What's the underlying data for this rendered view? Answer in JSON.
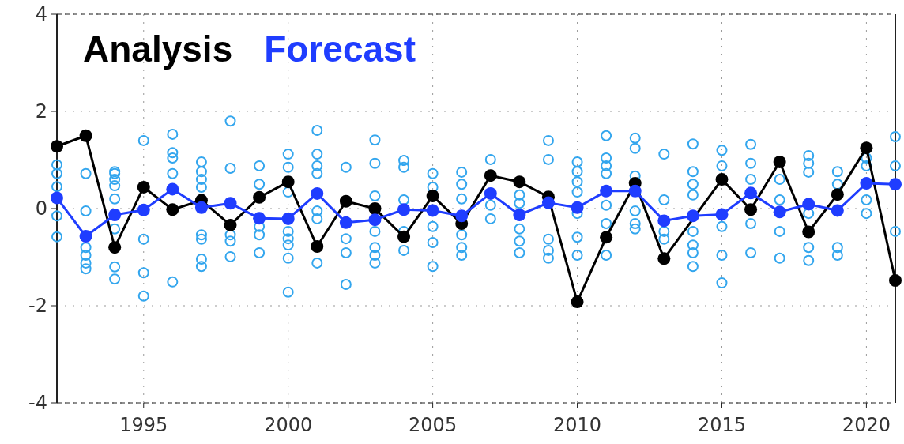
{
  "chart_data": {
    "type": "line",
    "x": [
      1992,
      1993,
      1994,
      1995,
      1996,
      1997,
      1998,
      1999,
      2000,
      2001,
      2002,
      2003,
      2004,
      2005,
      2006,
      2007,
      2008,
      2009,
      2010,
      2011,
      2012,
      2013,
      2014,
      2015,
      2016,
      2017,
      2018,
      2019,
      2020,
      2021
    ],
    "series": [
      {
        "type": "scatter",
        "color": "#33a6ee",
        "x": [
          1992,
          1992,
          1992,
          1992,
          1992,
          1993,
          1993,
          1993,
          1993,
          1993,
          1993,
          1994,
          1994,
          1994,
          1994,
          1994,
          1994,
          1994,
          1994,
          1995,
          1995,
          1995,
          1995,
          1996,
          1996,
          1996,
          1996,
          1996,
          1997,
          1997,
          1997,
          1997,
          1997,
          1997,
          1997,
          1997,
          1998,
          1998,
          1998,
          1998,
          1998,
          1999,
          1999,
          1999,
          1999,
          1999,
          2000,
          2000,
          2000,
          2000,
          2000,
          2000,
          2000,
          2000,
          2001,
          2001,
          2001,
          2001,
          2001,
          2001,
          2001,
          2002,
          2002,
          2002,
          2002,
          2003,
          2003,
          2003,
          2003,
          2003,
          2003,
          2003,
          2004,
          2004,
          2004,
          2004,
          2004,
          2005,
          2005,
          2005,
          2005,
          2005,
          2006,
          2006,
          2006,
          2006,
          2006,
          2006,
          2007,
          2007,
          2007,
          2008,
          2008,
          2008,
          2008,
          2008,
          2009,
          2009,
          2009,
          2009,
          2009,
          2010,
          2010,
          2010,
          2010,
          2010,
          2010,
          2010,
          2011,
          2011,
          2011,
          2011,
          2011,
          2011,
          2011,
          2012,
          2012,
          2012,
          2012,
          2012,
          2012,
          2013,
          2013,
          2013,
          2013,
          2014,
          2014,
          2014,
          2014,
          2014,
          2014,
          2014,
          2014,
          2015,
          2015,
          2015,
          2015,
          2015,
          2016,
          2016,
          2016,
          2016,
          2016,
          2017,
          2017,
          2017,
          2017,
          2018,
          2018,
          2018,
          2018,
          2018,
          2018,
          2019,
          2019,
          2019,
          2019,
          2020,
          2020,
          2020,
          2020,
          2021,
          2021,
          2021
        ],
        "values": [
          0.9,
          0.72,
          0.45,
          -0.15,
          -0.58,
          0.72,
          -0.05,
          -0.8,
          -0.96,
          -1.12,
          -1.24,
          0.76,
          0.72,
          0.6,
          0.47,
          0.2,
          -0.42,
          -1.2,
          -1.45,
          1.4,
          -0.63,
          -1.32,
          -1.8,
          1.53,
          1.15,
          1.04,
          0.72,
          -1.51,
          0.96,
          0.76,
          0.6,
          0.44,
          -0.54,
          -0.63,
          -1.04,
          -1.19,
          1.8,
          0.83,
          -0.54,
          -0.67,
          -0.99,
          0.88,
          0.5,
          -0.37,
          -0.54,
          -0.91,
          1.12,
          0.85,
          0.34,
          -0.47,
          -0.62,
          -0.75,
          -1.02,
          -1.72,
          1.61,
          1.12,
          0.88,
          0.72,
          -0.05,
          -0.21,
          -1.12,
          0.85,
          -0.62,
          -0.91,
          -1.56,
          1.41,
          0.93,
          0.26,
          -0.47,
          -0.8,
          -0.96,
          -1.12,
          0.99,
          0.85,
          0.18,
          -0.47,
          -0.86,
          0.72,
          0.44,
          -0.37,
          -0.7,
          -1.19,
          0.75,
          0.5,
          0.2,
          -0.54,
          -0.8,
          -0.96,
          1.01,
          0.07,
          -0.21,
          0.28,
          0.11,
          -0.42,
          -0.67,
          -0.91,
          1.4,
          1.01,
          -0.63,
          -0.86,
          -1.02,
          0.96,
          0.76,
          0.55,
          0.34,
          -0.1,
          -0.59,
          -0.96,
          1.5,
          1.04,
          0.88,
          0.72,
          0.07,
          -0.31,
          -0.96,
          1.45,
          1.24,
          0.67,
          -0.05,
          -0.31,
          -0.42,
          1.12,
          0.18,
          -0.47,
          -0.63,
          1.33,
          0.76,
          0.5,
          0.28,
          -0.47,
          -0.75,
          -0.91,
          -1.19,
          1.2,
          0.88,
          -0.37,
          -0.96,
          -1.53,
          1.32,
          0.93,
          0.6,
          -0.31,
          -0.91,
          0.6,
          0.18,
          -0.47,
          -1.02,
          1.09,
          0.93,
          0.75,
          -0.1,
          -0.8,
          -1.07,
          0.76,
          0.5,
          -0.8,
          -0.96,
          1.04,
          0.88,
          0.18,
          -0.1,
          1.48,
          0.88,
          -0.47
        ]
      },
      {
        "name": "Analysis",
        "color": "#000000",
        "values": [
          1.28,
          1.5,
          -0.8,
          0.44,
          -0.02,
          0.17,
          -0.34,
          0.23,
          0.55,
          -0.78,
          0.15,
          0.0,
          -0.58,
          0.26,
          -0.31,
          0.68,
          0.55,
          0.24,
          -1.92,
          -0.59,
          0.52,
          -1.03,
          null,
          0.6,
          -0.02,
          0.96,
          -0.48,
          0.29,
          1.25,
          -1.48
        ]
      },
      {
        "name": "Forecast",
        "color": "#1f3dff",
        "values": [
          0.22,
          -0.57,
          -0.13,
          -0.03,
          0.4,
          0.02,
          0.11,
          -0.2,
          -0.21,
          0.31,
          -0.29,
          -0.23,
          -0.02,
          -0.04,
          -0.15,
          0.31,
          -0.13,
          0.12,
          0.02,
          0.36,
          0.36,
          -0.25,
          -0.15,
          -0.12,
          0.32,
          -0.07,
          0.09,
          -0.04,
          0.52,
          0.5
        ]
      }
    ],
    "xlim": [
      1992,
      2021
    ],
    "xticks": [
      1995,
      2000,
      2005,
      2010,
      2015,
      2020
    ],
    "ylim": [
      -4,
      4
    ],
    "yticks": [
      -4,
      -2,
      0,
      2,
      4
    ],
    "grid": true,
    "legend": "top left",
    "marker": "circle"
  }
}
